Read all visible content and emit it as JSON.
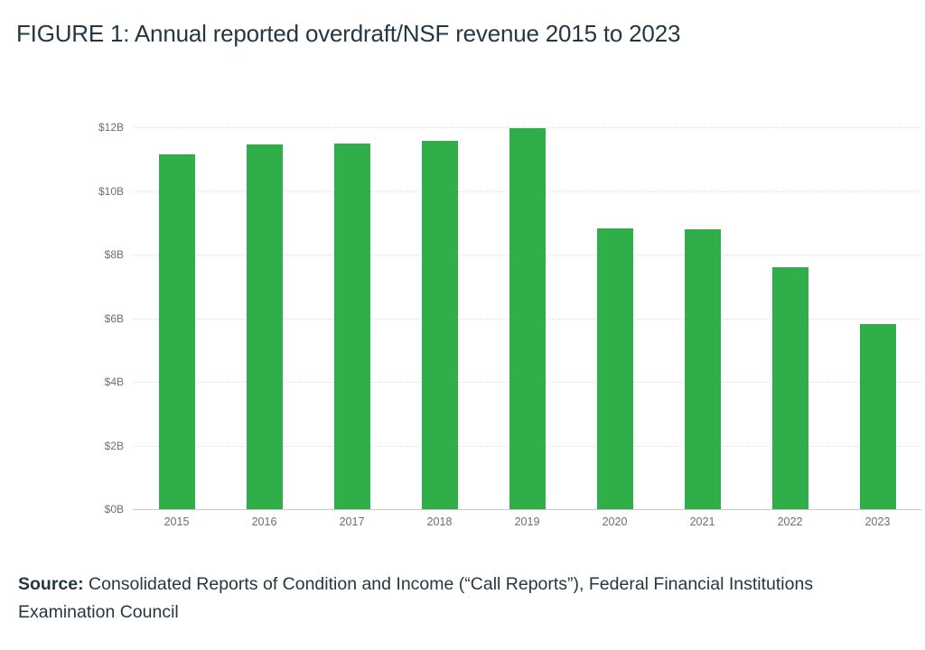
{
  "title": "FIGURE 1: Annual reported overdraft/NSF revenue 2015 to 2023",
  "source": {
    "label": "Source:",
    "text": " Consolidated Reports of Condition and Income (“Call Reports”), Federal Financial Institutions Examination Council"
  },
  "colors": {
    "bar": "#2fae4a",
    "title_text": "#253742",
    "axis_text": "#6e6e6e",
    "gridline": "#e2e2e2",
    "baseline": "#c9c9c9"
  },
  "chart_data": {
    "type": "bar",
    "title": "FIGURE 1: Annual reported overdraft/NSF revenue 2015 to 2023",
    "categories": [
      "2015",
      "2016",
      "2017",
      "2018",
      "2019",
      "2020",
      "2021",
      "2022",
      "2023"
    ],
    "values": [
      11.15,
      11.45,
      11.48,
      11.58,
      11.97,
      8.83,
      8.79,
      7.61,
      5.81
    ],
    "unit": "billions of USD",
    "xlabel": "",
    "ylabel": "",
    "ylim": [
      0,
      12
    ],
    "y_ticks": [
      "$0B",
      "$2B",
      "$4B",
      "$6B",
      "$8B",
      "$10B",
      "$12B"
    ],
    "y_tick_values": [
      0,
      2,
      4,
      6,
      8,
      10,
      12
    ],
    "grid": true,
    "legend": false
  }
}
